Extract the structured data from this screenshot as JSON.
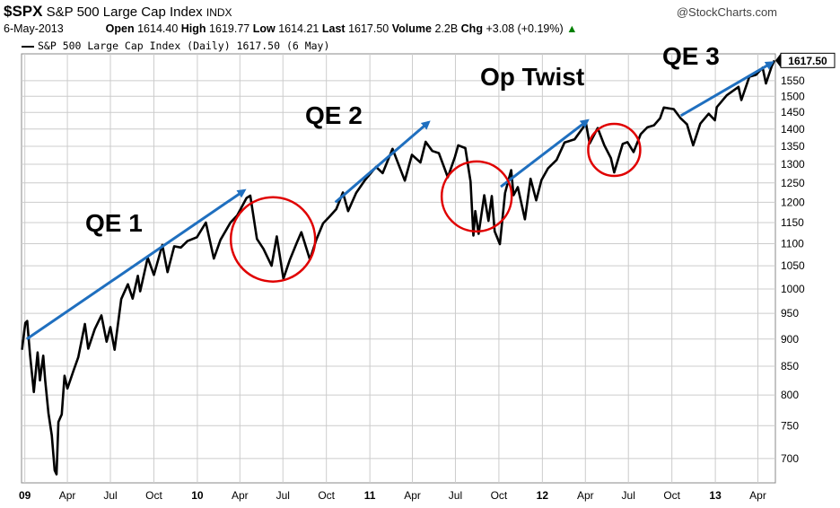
{
  "header": {
    "symbol": "$SPX",
    "name": "S&P 500 Large Cap Index",
    "exchange": "INDX",
    "date": "6-May-2013",
    "open_label": "Open",
    "open": "1614.40",
    "high_label": "High",
    "high": "1619.77",
    "low_label": "Low",
    "low": "1614.21",
    "last_label": "Last",
    "last": "1617.50",
    "volume_label": "Volume",
    "volume": "2.2B",
    "chg_label": "Chg",
    "chg": "+3.08 (+0.19%)",
    "brand": "@StockCharts.com",
    "legend": "S&P 500 Large Cap Index (Daily) 1617.50 (6 May)",
    "last_badge": "1617.50"
  },
  "chart_data": {
    "type": "line",
    "y_scale": "log",
    "ylim": [
      665,
      1640
    ],
    "xlim": [
      "2008-12-25",
      "2013-05-08"
    ],
    "y_ticks": [
      700,
      750,
      800,
      850,
      900,
      950,
      1000,
      1050,
      1100,
      1150,
      1200,
      1250,
      1300,
      1350,
      1400,
      1450,
      1500,
      1550
    ],
    "y_tick_labels": [
      "700",
      "750",
      "800",
      "850",
      "900",
      "950",
      "1000",
      "1050",
      "1100",
      "1150",
      "1200",
      "1250",
      "1300",
      "1350",
      "1400",
      "1450",
      "1500",
      "1550"
    ],
    "x_ticks": [
      {
        "date": "2009-01-01",
        "label": "09",
        "bold": true
      },
      {
        "date": "2009-04-01",
        "label": "Apr"
      },
      {
        "date": "2009-07-01",
        "label": "Jul"
      },
      {
        "date": "2009-10-01",
        "label": "Oct"
      },
      {
        "date": "2010-01-01",
        "label": "10",
        "bold": true
      },
      {
        "date": "2010-04-01",
        "label": "Apr"
      },
      {
        "date": "2010-07-01",
        "label": "Jul"
      },
      {
        "date": "2010-10-01",
        "label": "Oct"
      },
      {
        "date": "2011-01-01",
        "label": "11",
        "bold": true
      },
      {
        "date": "2011-04-01",
        "label": "Apr"
      },
      {
        "date": "2011-07-01",
        "label": "Jul"
      },
      {
        "date": "2011-10-01",
        "label": "Oct"
      },
      {
        "date": "2012-01-01",
        "label": "12",
        "bold": true
      },
      {
        "date": "2012-04-01",
        "label": "Apr"
      },
      {
        "date": "2012-07-01",
        "label": "Jul"
      },
      {
        "date": "2012-10-01",
        "label": "Oct"
      },
      {
        "date": "2013-01-01",
        "label": "13",
        "bold": true
      },
      {
        "date": "2013-04-01",
        "label": "Apr"
      }
    ],
    "series": [
      {
        "values": [
          [
            "2008-12-26",
            880
          ],
          [
            "2009-01-02",
            931
          ],
          [
            "2009-01-06",
            935
          ],
          [
            "2009-01-12",
            870
          ],
          [
            "2009-01-20",
            805
          ],
          [
            "2009-01-28",
            875
          ],
          [
            "2009-02-02",
            825
          ],
          [
            "2009-02-09",
            869
          ],
          [
            "2009-02-13",
            826
          ],
          [
            "2009-02-20",
            770
          ],
          [
            "2009-02-27",
            735
          ],
          [
            "2009-03-05",
            683
          ],
          [
            "2009-03-09",
            677
          ],
          [
            "2009-03-13",
            756
          ],
          [
            "2009-03-20",
            768
          ],
          [
            "2009-03-26",
            833
          ],
          [
            "2009-04-01",
            811
          ],
          [
            "2009-04-14",
            842
          ],
          [
            "2009-04-24",
            866
          ],
          [
            "2009-05-08",
            929
          ],
          [
            "2009-05-15",
            882
          ],
          [
            "2009-05-29",
            919
          ],
          [
            "2009-06-12",
            946
          ],
          [
            "2009-06-23",
            895
          ],
          [
            "2009-07-01",
            923
          ],
          [
            "2009-07-10",
            880
          ],
          [
            "2009-07-24",
            979
          ],
          [
            "2009-08-07",
            1010
          ],
          [
            "2009-08-17",
            980
          ],
          [
            "2009-08-28",
            1028
          ],
          [
            "2009-09-02",
            995
          ],
          [
            "2009-09-18",
            1068
          ],
          [
            "2009-10-01",
            1030
          ],
          [
            "2009-10-19",
            1097
          ],
          [
            "2009-10-30",
            1036
          ],
          [
            "2009-11-13",
            1094
          ],
          [
            "2009-11-27",
            1091
          ],
          [
            "2009-12-11",
            1106
          ],
          [
            "2009-12-31",
            1115
          ],
          [
            "2010-01-19",
            1150
          ],
          [
            "2010-02-05",
            1066
          ],
          [
            "2010-02-19",
            1109
          ],
          [
            "2010-03-12",
            1150
          ],
          [
            "2010-03-26",
            1167
          ],
          [
            "2010-04-15",
            1211
          ],
          [
            "2010-04-23",
            1217
          ],
          [
            "2010-05-07",
            1111
          ],
          [
            "2010-05-21",
            1088
          ],
          [
            "2010-06-07",
            1050
          ],
          [
            "2010-06-18",
            1117
          ],
          [
            "2010-07-02",
            1022
          ],
          [
            "2010-07-16",
            1064
          ],
          [
            "2010-07-30",
            1101
          ],
          [
            "2010-08-09",
            1127
          ],
          [
            "2010-08-27",
            1064
          ],
          [
            "2010-09-10",
            1110
          ],
          [
            "2010-09-24",
            1148
          ],
          [
            "2010-10-08",
            1165
          ],
          [
            "2010-10-22",
            1183
          ],
          [
            "2010-11-05",
            1225
          ],
          [
            "2010-11-16",
            1178
          ],
          [
            "2010-12-03",
            1224
          ],
          [
            "2010-12-22",
            1258
          ],
          [
            "2011-01-14",
            1293
          ],
          [
            "2011-01-28",
            1276
          ],
          [
            "2011-02-18",
            1343
          ],
          [
            "2011-03-16",
            1256
          ],
          [
            "2011-03-31",
            1326
          ],
          [
            "2011-04-18",
            1305
          ],
          [
            "2011-04-29",
            1363
          ],
          [
            "2011-05-13",
            1337
          ],
          [
            "2011-05-27",
            1331
          ],
          [
            "2011-06-15",
            1265
          ],
          [
            "2011-06-30",
            1320
          ],
          [
            "2011-07-07",
            1353
          ],
          [
            "2011-07-22",
            1345
          ],
          [
            "2011-08-02",
            1254
          ],
          [
            "2011-08-08",
            1119
          ],
          [
            "2011-08-12",
            1178
          ],
          [
            "2011-08-19",
            1123
          ],
          [
            "2011-08-31",
            1218
          ],
          [
            "2011-09-09",
            1154
          ],
          [
            "2011-09-16",
            1216
          ],
          [
            "2011-09-22",
            1129
          ],
          [
            "2011-10-03",
            1099
          ],
          [
            "2011-10-14",
            1224
          ],
          [
            "2011-10-27",
            1284
          ],
          [
            "2011-11-01",
            1218
          ],
          [
            "2011-11-10",
            1239
          ],
          [
            "2011-11-25",
            1158
          ],
          [
            "2011-12-07",
            1261
          ],
          [
            "2011-12-19",
            1205
          ],
          [
            "2011-12-30",
            1257
          ],
          [
            "2012-01-13",
            1289
          ],
          [
            "2012-01-31",
            1312
          ],
          [
            "2012-02-17",
            1361
          ],
          [
            "2012-03-09",
            1370
          ],
          [
            "2012-03-28",
            1406
          ],
          [
            "2012-04-02",
            1419
          ],
          [
            "2012-04-10",
            1358
          ],
          [
            "2012-04-27",
            1403
          ],
          [
            "2012-05-11",
            1353
          ],
          [
            "2012-05-25",
            1317
          ],
          [
            "2012-06-01",
            1278
          ],
          [
            "2012-06-19",
            1357
          ],
          [
            "2012-06-29",
            1362
          ],
          [
            "2012-07-12",
            1334
          ],
          [
            "2012-07-27",
            1385
          ],
          [
            "2012-08-10",
            1405
          ],
          [
            "2012-08-24",
            1411
          ],
          [
            "2012-09-06",
            1432
          ],
          [
            "2012-09-14",
            1465
          ],
          [
            "2012-10-05",
            1460
          ],
          [
            "2012-10-19",
            1433
          ],
          [
            "2012-11-02",
            1414
          ],
          [
            "2012-11-15",
            1353
          ],
          [
            "2012-11-30",
            1416
          ],
          [
            "2012-12-18",
            1446
          ],
          [
            "2012-12-31",
            1426
          ],
          [
            "2013-01-04",
            1466
          ],
          [
            "2013-01-25",
            1503
          ],
          [
            "2013-02-19",
            1530
          ],
          [
            "2013-02-25",
            1488
          ],
          [
            "2013-03-14",
            1563
          ],
          [
            "2013-03-28",
            1569
          ],
          [
            "2013-04-11",
            1593
          ],
          [
            "2013-04-18",
            1541
          ],
          [
            "2013-04-30",
            1597
          ],
          [
            "2013-05-06",
            1617.5
          ]
        ]
      }
    ],
    "annotations": [
      {
        "label": "QE 1",
        "arrow_from": [
          "2009-01-05",
          900
        ],
        "arrow_to": [
          "2010-04-10",
          1230
        ],
        "circle": null
      },
      {
        "label": "QE 2",
        "arrow_from": [
          "2010-10-20",
          1200
        ],
        "arrow_to": [
          "2011-05-05",
          1420
        ],
        "circle": [
          "2010-06-10",
          1110
        ]
      },
      {
        "label": "Op Twist",
        "arrow_from": [
          "2011-10-05",
          1240
        ],
        "arrow_to": [
          "2012-04-05",
          1425
        ],
        "circle": [
          "2011-08-15",
          1215
        ]
      },
      {
        "label": "QE 3",
        "arrow_from": [
          "2012-10-20",
          1440
        ],
        "arrow_to": [
          "2013-05-01",
          1610
        ],
        "circle": [
          "2012-06-01",
          1340
        ]
      }
    ],
    "colors": {
      "price": "#000000",
      "arrow": "#1f6fbf",
      "circle": "#e00000",
      "grid": "#cccccc"
    }
  }
}
